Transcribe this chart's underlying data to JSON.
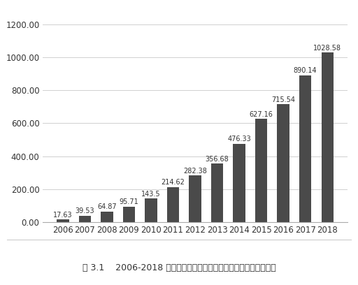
{
  "years": [
    "2006",
    "2007",
    "2008",
    "2009",
    "2010",
    "2011",
    "2012",
    "2013",
    "2014",
    "2015",
    "2016",
    "2017",
    "2018"
  ],
  "values": [
    17.63,
    39.53,
    64.87,
    95.71,
    143.5,
    214.62,
    282.38,
    356.68,
    476.33,
    627.16,
    715.54,
    890.14,
    1028.58
  ],
  "bar_color": "#4a4a4a",
  "ylim": [
    0,
    1260
  ],
  "yticks": [
    0.0,
    200.0,
    400.0,
    600.0,
    800.0,
    1000.0,
    1200.0
  ],
  "title": "图 3.1    2006-2018 年中国对东盟直接投资存量表（单位：亿美元）",
  "label_fontsize": 7,
  "tick_fontsize": 8.5,
  "title_fontsize": 9,
  "chart_bg": "#ffffff",
  "fig_bg": "#ffffff",
  "grid_color": "#d0d0d0",
  "bar_width": 0.55
}
